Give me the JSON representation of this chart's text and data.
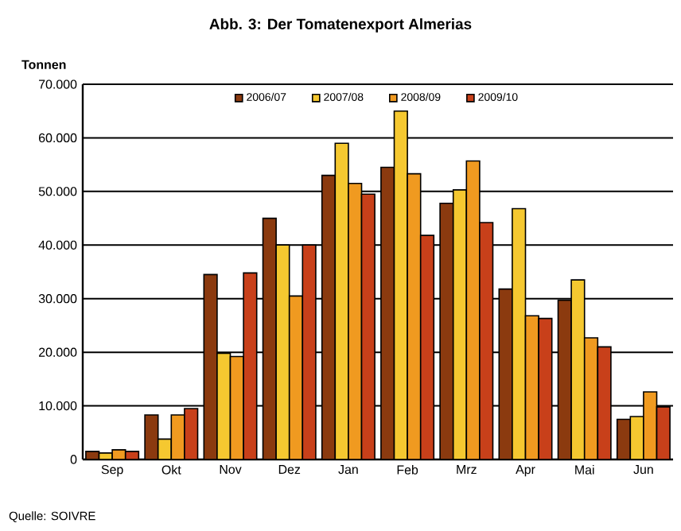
{
  "chart_data": {
    "type": "bar",
    "title": "Abb. 3: Der Tomatenexport  Almerias",
    "ylabel": "Tonnen",
    "annotations": [
      "Quelle: SOIVRE"
    ],
    "categories": [
      "Sep",
      "Okt",
      "Nov",
      "Dez",
      "Jan",
      "Feb",
      "Mrz",
      "Apr",
      "Mai",
      "Jun"
    ],
    "series": [
      {
        "name": "2006/07",
        "color": "#8b3a0f",
        "values": [
          1500,
          8300,
          34500,
          45000,
          53000,
          54500,
          47800,
          31800,
          29700,
          7500
        ]
      },
      {
        "name": "2007/08",
        "color": "#f5c830",
        "values": [
          1200,
          3800,
          19800,
          40000,
          59000,
          65000,
          50300,
          46800,
          33500,
          8000
        ]
      },
      {
        "name": "2008/09",
        "color": "#f09a20",
        "values": [
          1800,
          8300,
          19200,
          30500,
          51500,
          53300,
          55700,
          26800,
          22700,
          12600
        ]
      },
      {
        "name": "2009/10",
        "color": "#c8401a",
        "values": [
          1500,
          9500,
          34800,
          40000,
          49500,
          41800,
          44200,
          26300,
          21000,
          9800
        ]
      }
    ],
    "ylim": [
      0,
      70000
    ],
    "yticks": [
      {
        "value": 0,
        "label": "0"
      },
      {
        "value": 10000,
        "label": "10.000"
      },
      {
        "value": 20000,
        "label": "20.000"
      },
      {
        "value": 30000,
        "label": "30.000"
      },
      {
        "value": 40000,
        "label": "40.000"
      },
      {
        "value": 50000,
        "label": "50.000"
      },
      {
        "value": 60000,
        "label": "60.000"
      },
      {
        "value": 70000,
        "label": "70.000"
      }
    ],
    "grid": "y",
    "legend": "top"
  }
}
